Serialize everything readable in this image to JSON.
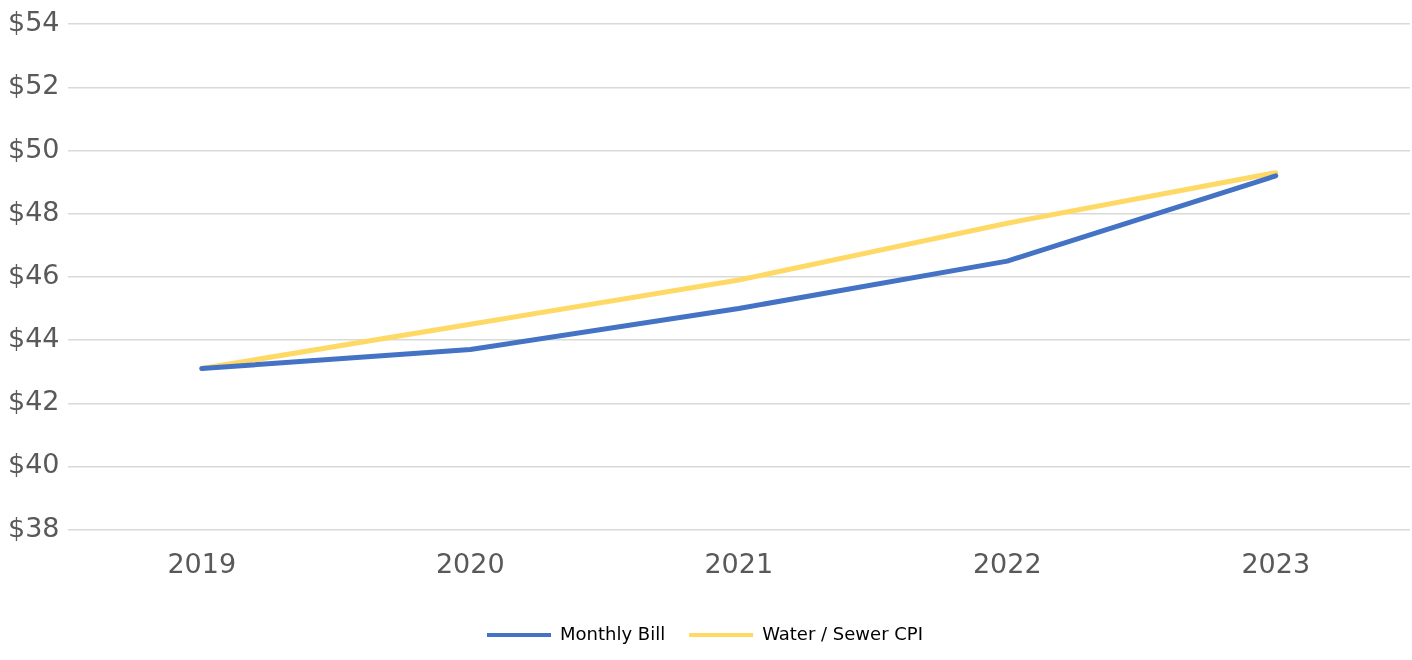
{
  "chart_data": {
    "type": "line",
    "categories": [
      "2019",
      "2020",
      "2021",
      "2022",
      "2023"
    ],
    "series": [
      {
        "name": "Monthly Bill",
        "color": "#4472c4",
        "values": [
          43.1,
          43.7,
          45.0,
          46.5,
          49.2
        ]
      },
      {
        "name": "Water / Sewer CPI",
        "color": "#ffd966",
        "values": [
          43.1,
          44.5,
          45.9,
          47.7,
          49.3
        ]
      }
    ],
    "ylim": [
      38,
      54
    ],
    "yticks": [
      {
        "value": 38,
        "label": "$38"
      },
      {
        "value": 40,
        "label": "$40"
      },
      {
        "value": 42,
        "label": "$42"
      },
      {
        "value": 44,
        "label": "$44"
      },
      {
        "value": 46,
        "label": "$46"
      },
      {
        "value": 48,
        "label": "$48"
      },
      {
        "value": 50,
        "label": "$50"
      },
      {
        "value": 52,
        "label": "$52"
      },
      {
        "value": 54,
        "label": "$54"
      }
    ],
    "grid": "y",
    "legend": "bottom",
    "marker": "none",
    "line_style": "solid"
  }
}
